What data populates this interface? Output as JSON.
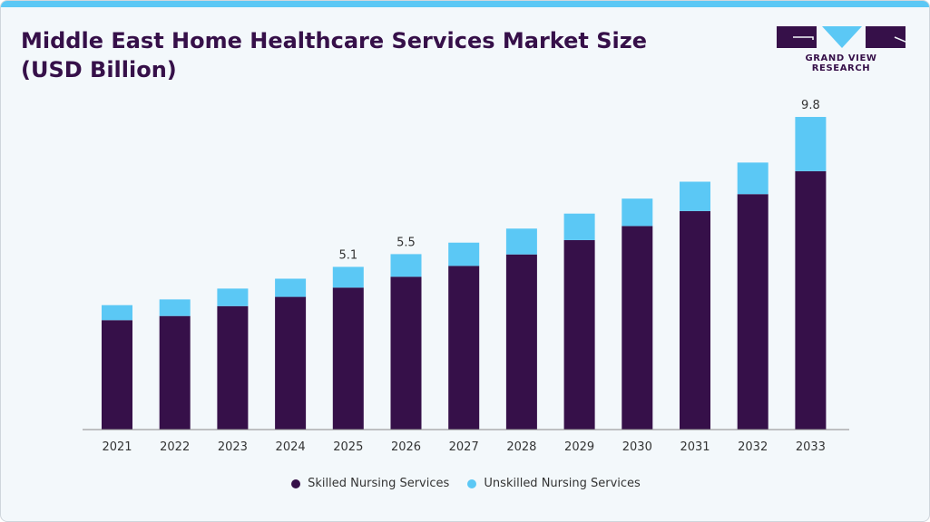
{
  "title": "Middle East Home Healthcare Services Market Size (USD Billion)",
  "logo": {
    "text": "GRAND VIEW RESEARCH"
  },
  "colors": {
    "skilled": "#361049",
    "unskilled": "#5bc8f5",
    "accent": "#5bc8f5"
  },
  "chart_data": {
    "type": "bar",
    "stacked": true,
    "title": "Middle East Home Healthcare Services Market Size (USD Billion)",
    "categories": [
      "2021",
      "2022",
      "2023",
      "2024",
      "2025",
      "2026",
      "2027",
      "2028",
      "2029",
      "2030",
      "2031",
      "2032",
      "2033"
    ],
    "series": [
      {
        "name": "Skilled Nursing Services",
        "values": [
          3.43,
          3.56,
          3.87,
          4.16,
          4.45,
          4.79,
          5.13,
          5.49,
          5.94,
          6.38,
          6.85,
          7.38,
          8.1
        ]
      },
      {
        "name": "Unskilled Nursing Services",
        "values": [
          0.47,
          0.52,
          0.55,
          0.57,
          0.65,
          0.71,
          0.73,
          0.81,
          0.83,
          0.86,
          0.92,
          0.99,
          1.7
        ]
      }
    ],
    "data_labels": {
      "2025": "5.1",
      "2026": "5.5",
      "2033": "9.8"
    },
    "legend": "bottom",
    "grid": false
  }
}
